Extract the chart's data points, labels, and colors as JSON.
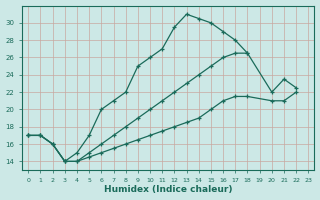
{
  "xlabel": "Humidex (Indice chaleur)",
  "bg_color": "#cce8e6",
  "grid_color": "#b0d0ce",
  "line_color": "#1a6b5a",
  "xlim": [
    -0.5,
    23.5
  ],
  "ylim": [
    13,
    32
  ],
  "yticks": [
    14,
    16,
    18,
    20,
    22,
    24,
    26,
    28,
    30
  ],
  "xticks": [
    0,
    1,
    2,
    3,
    4,
    5,
    6,
    7,
    8,
    9,
    10,
    11,
    12,
    13,
    14,
    15,
    16,
    17,
    18,
    19,
    20,
    21,
    22,
    23
  ],
  "series": [
    {
      "x": [
        0,
        1,
        2,
        3,
        4,
        5,
        6,
        7,
        8,
        9,
        10,
        11,
        12,
        13,
        14,
        15,
        16,
        17,
        18
      ],
      "y": [
        17,
        17,
        16,
        14,
        15,
        17,
        20,
        21,
        22,
        25,
        26,
        27,
        29.5,
        31,
        30.5,
        30,
        29,
        28,
        26.5
      ]
    },
    {
      "x": [
        0,
        1,
        2,
        3,
        4,
        5,
        6,
        7,
        8,
        9,
        10,
        11,
        12,
        13,
        14,
        15,
        16,
        17,
        18,
        20,
        21,
        22
      ],
      "y": [
        17,
        17,
        16,
        14,
        14,
        15,
        16,
        17,
        18,
        19,
        20,
        21,
        22,
        23,
        24,
        25,
        26,
        26.5,
        26.5,
        22,
        23.5,
        22.5
      ]
    },
    {
      "x": [
        0,
        1,
        2,
        3,
        4,
        5,
        6,
        7,
        8,
        9,
        10,
        11,
        12,
        13,
        14,
        15,
        16,
        17,
        18,
        20,
        21,
        22
      ],
      "y": [
        17,
        17,
        16,
        14,
        14,
        14.5,
        15,
        15.5,
        16,
        16.5,
        17,
        17.5,
        18,
        18.5,
        19,
        20,
        21,
        21.5,
        21.5,
        21,
        21,
        22
      ]
    }
  ]
}
